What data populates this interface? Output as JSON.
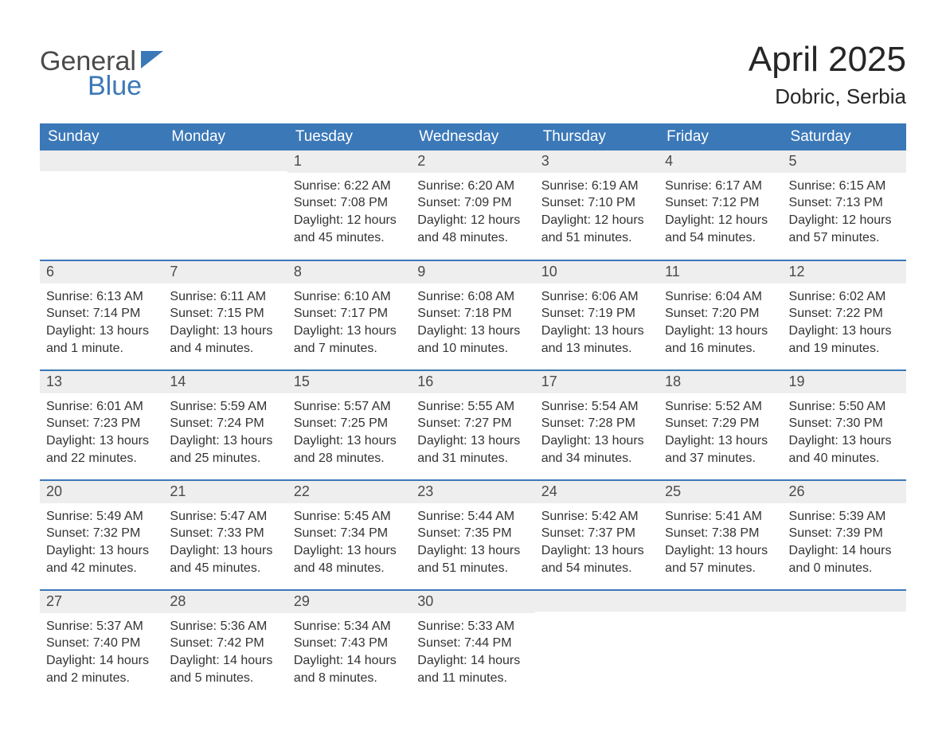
{
  "logo": {
    "text1": "General",
    "text2": "Blue"
  },
  "title": "April 2025",
  "location": "Dobric, Serbia",
  "colors": {
    "header_bg": "#3b78b8",
    "header_text": "#ffffff",
    "daynum_bg": "#eeeeee",
    "daynum_text": "#4a4a4a",
    "body_text": "#333333",
    "row_border": "#3b78b8",
    "page_bg": "#ffffff",
    "logo_gray": "#4a4a4a",
    "logo_blue": "#3b78b8"
  },
  "typography": {
    "month_title_fontsize": 44,
    "location_fontsize": 26,
    "weekday_fontsize": 19,
    "daynum_fontsize": 18,
    "body_fontsize": 16,
    "logo_fontsize": 34
  },
  "weekdays": [
    "Sunday",
    "Monday",
    "Tuesday",
    "Wednesday",
    "Thursday",
    "Friday",
    "Saturday"
  ],
  "weeks": [
    [
      {
        "day": "",
        "sunrise": "",
        "sunset": "",
        "daylight": ""
      },
      {
        "day": "",
        "sunrise": "",
        "sunset": "",
        "daylight": ""
      },
      {
        "day": "1",
        "sunrise": "Sunrise: 6:22 AM",
        "sunset": "Sunset: 7:08 PM",
        "daylight": "Daylight: 12 hours and 45 minutes."
      },
      {
        "day": "2",
        "sunrise": "Sunrise: 6:20 AM",
        "sunset": "Sunset: 7:09 PM",
        "daylight": "Daylight: 12 hours and 48 minutes."
      },
      {
        "day": "3",
        "sunrise": "Sunrise: 6:19 AM",
        "sunset": "Sunset: 7:10 PM",
        "daylight": "Daylight: 12 hours and 51 minutes."
      },
      {
        "day": "4",
        "sunrise": "Sunrise: 6:17 AM",
        "sunset": "Sunset: 7:12 PM",
        "daylight": "Daylight: 12 hours and 54 minutes."
      },
      {
        "day": "5",
        "sunrise": "Sunrise: 6:15 AM",
        "sunset": "Sunset: 7:13 PM",
        "daylight": "Daylight: 12 hours and 57 minutes."
      }
    ],
    [
      {
        "day": "6",
        "sunrise": "Sunrise: 6:13 AM",
        "sunset": "Sunset: 7:14 PM",
        "daylight": "Daylight: 13 hours and 1 minute."
      },
      {
        "day": "7",
        "sunrise": "Sunrise: 6:11 AM",
        "sunset": "Sunset: 7:15 PM",
        "daylight": "Daylight: 13 hours and 4 minutes."
      },
      {
        "day": "8",
        "sunrise": "Sunrise: 6:10 AM",
        "sunset": "Sunset: 7:17 PM",
        "daylight": "Daylight: 13 hours and 7 minutes."
      },
      {
        "day": "9",
        "sunrise": "Sunrise: 6:08 AM",
        "sunset": "Sunset: 7:18 PM",
        "daylight": "Daylight: 13 hours and 10 minutes."
      },
      {
        "day": "10",
        "sunrise": "Sunrise: 6:06 AM",
        "sunset": "Sunset: 7:19 PM",
        "daylight": "Daylight: 13 hours and 13 minutes."
      },
      {
        "day": "11",
        "sunrise": "Sunrise: 6:04 AM",
        "sunset": "Sunset: 7:20 PM",
        "daylight": "Daylight: 13 hours and 16 minutes."
      },
      {
        "day": "12",
        "sunrise": "Sunrise: 6:02 AM",
        "sunset": "Sunset: 7:22 PM",
        "daylight": "Daylight: 13 hours and 19 minutes."
      }
    ],
    [
      {
        "day": "13",
        "sunrise": "Sunrise: 6:01 AM",
        "sunset": "Sunset: 7:23 PM",
        "daylight": "Daylight: 13 hours and 22 minutes."
      },
      {
        "day": "14",
        "sunrise": "Sunrise: 5:59 AM",
        "sunset": "Sunset: 7:24 PM",
        "daylight": "Daylight: 13 hours and 25 minutes."
      },
      {
        "day": "15",
        "sunrise": "Sunrise: 5:57 AM",
        "sunset": "Sunset: 7:25 PM",
        "daylight": "Daylight: 13 hours and 28 minutes."
      },
      {
        "day": "16",
        "sunrise": "Sunrise: 5:55 AM",
        "sunset": "Sunset: 7:27 PM",
        "daylight": "Daylight: 13 hours and 31 minutes."
      },
      {
        "day": "17",
        "sunrise": "Sunrise: 5:54 AM",
        "sunset": "Sunset: 7:28 PM",
        "daylight": "Daylight: 13 hours and 34 minutes."
      },
      {
        "day": "18",
        "sunrise": "Sunrise: 5:52 AM",
        "sunset": "Sunset: 7:29 PM",
        "daylight": "Daylight: 13 hours and 37 minutes."
      },
      {
        "day": "19",
        "sunrise": "Sunrise: 5:50 AM",
        "sunset": "Sunset: 7:30 PM",
        "daylight": "Daylight: 13 hours and 40 minutes."
      }
    ],
    [
      {
        "day": "20",
        "sunrise": "Sunrise: 5:49 AM",
        "sunset": "Sunset: 7:32 PM",
        "daylight": "Daylight: 13 hours and 42 minutes."
      },
      {
        "day": "21",
        "sunrise": "Sunrise: 5:47 AM",
        "sunset": "Sunset: 7:33 PM",
        "daylight": "Daylight: 13 hours and 45 minutes."
      },
      {
        "day": "22",
        "sunrise": "Sunrise: 5:45 AM",
        "sunset": "Sunset: 7:34 PM",
        "daylight": "Daylight: 13 hours and 48 minutes."
      },
      {
        "day": "23",
        "sunrise": "Sunrise: 5:44 AM",
        "sunset": "Sunset: 7:35 PM",
        "daylight": "Daylight: 13 hours and 51 minutes."
      },
      {
        "day": "24",
        "sunrise": "Sunrise: 5:42 AM",
        "sunset": "Sunset: 7:37 PM",
        "daylight": "Daylight: 13 hours and 54 minutes."
      },
      {
        "day": "25",
        "sunrise": "Sunrise: 5:41 AM",
        "sunset": "Sunset: 7:38 PM",
        "daylight": "Daylight: 13 hours and 57 minutes."
      },
      {
        "day": "26",
        "sunrise": "Sunrise: 5:39 AM",
        "sunset": "Sunset: 7:39 PM",
        "daylight": "Daylight: 14 hours and 0 minutes."
      }
    ],
    [
      {
        "day": "27",
        "sunrise": "Sunrise: 5:37 AM",
        "sunset": "Sunset: 7:40 PM",
        "daylight": "Daylight: 14 hours and 2 minutes."
      },
      {
        "day": "28",
        "sunrise": "Sunrise: 5:36 AM",
        "sunset": "Sunset: 7:42 PM",
        "daylight": "Daylight: 14 hours and 5 minutes."
      },
      {
        "day": "29",
        "sunrise": "Sunrise: 5:34 AM",
        "sunset": "Sunset: 7:43 PM",
        "daylight": "Daylight: 14 hours and 8 minutes."
      },
      {
        "day": "30",
        "sunrise": "Sunrise: 5:33 AM",
        "sunset": "Sunset: 7:44 PM",
        "daylight": "Daylight: 14 hours and 11 minutes."
      },
      {
        "day": "",
        "sunrise": "",
        "sunset": "",
        "daylight": ""
      },
      {
        "day": "",
        "sunrise": "",
        "sunset": "",
        "daylight": ""
      },
      {
        "day": "",
        "sunrise": "",
        "sunset": "",
        "daylight": ""
      }
    ]
  ]
}
